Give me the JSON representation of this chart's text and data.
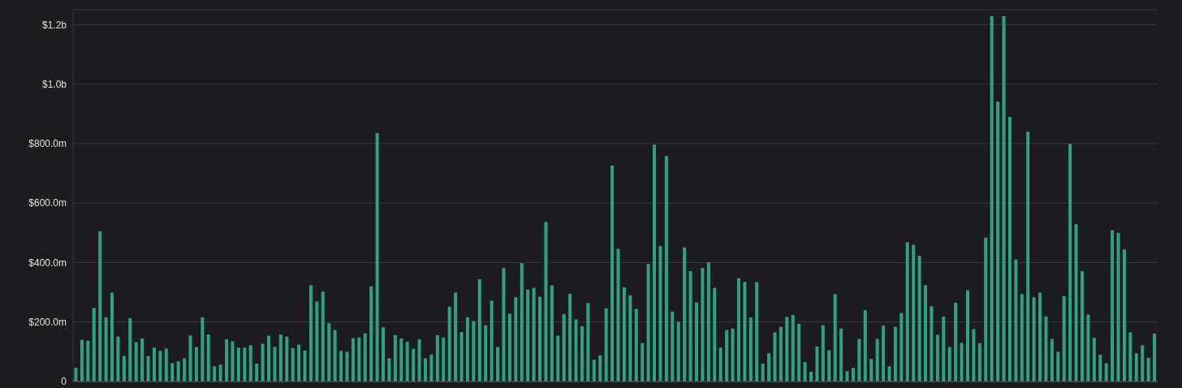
{
  "chart_data": {
    "type": "bar",
    "categories": [
      null,
      null,
      null,
      null,
      null,
      null,
      null,
      null,
      null,
      null,
      null,
      null,
      null,
      null,
      null,
      null,
      null,
      null,
      null,
      null,
      null,
      null,
      null,
      null,
      null,
      null,
      null,
      null,
      null,
      null,
      null,
      null,
      null,
      null,
      null,
      null,
      null,
      null,
      null,
      null,
      null,
      null,
      null,
      null,
      null,
      null,
      null,
      null,
      null,
      null,
      null,
      null,
      null,
      null,
      null,
      null,
      null,
      null,
      null,
      null,
      null,
      null,
      null,
      null,
      null,
      null,
      null,
      null,
      null,
      null,
      null,
      null,
      null,
      null,
      null,
      null,
      null,
      null,
      null,
      null,
      null,
      null,
      null,
      null,
      null,
      null,
      null,
      null,
      null,
      null,
      null,
      null,
      null,
      null,
      null,
      null,
      null,
      null,
      null,
      null,
      null,
      null,
      null,
      null,
      null,
      null,
      null,
      null,
      null,
      null,
      null,
      null,
      null,
      null,
      null,
      null,
      null,
      null,
      null,
      null,
      null,
      null,
      null,
      null,
      null,
      null,
      null,
      null,
      null,
      null,
      null,
      null,
      null,
      null,
      null,
      null,
      null,
      null,
      null,
      null,
      null,
      null,
      null,
      null,
      null,
      null,
      null,
      null,
      null,
      null,
      null,
      null,
      null,
      null,
      null,
      null,
      null,
      null,
      null,
      null,
      null,
      null,
      null,
      null,
      null,
      null,
      null,
      null,
      null,
      null,
      null,
      null,
      null,
      null,
      null,
      null,
      null,
      null,
      null,
      null
    ],
    "values": [
      46000000,
      140000000,
      137000000,
      247000000,
      505000000,
      216000000,
      299000000,
      151000000,
      86000000,
      213000000,
      132000000,
      145000000,
      86000000,
      114000000,
      103000000,
      111000000,
      62000000,
      68000000,
      78000000,
      155000000,
      116000000,
      216000000,
      158000000,
      51000000,
      56000000,
      142000000,
      135000000,
      114000000,
      114000000,
      122000000,
      60000000,
      127000000,
      154000000,
      116000000,
      158000000,
      151000000,
      112000000,
      124000000,
      104000000,
      324000000,
      269000000,
      302000000,
      196000000,
      173000000,
      103000000,
      100000000,
      146000000,
      148000000,
      162000000,
      320000000,
      835000000,
      183000000,
      78000000,
      156000000,
      145000000,
      133000000,
      110000000,
      142000000,
      78000000,
      91000000,
      156000000,
      148000000,
      251000000,
      299000000,
      166000000,
      216000000,
      203000000,
      344000000,
      189000000,
      272000000,
      116000000,
      382000000,
      228000000,
      283000000,
      398000000,
      309000000,
      315000000,
      285000000,
      536000000,
      323000000,
      154000000,
      227000000,
      295000000,
      209000000,
      186000000,
      264000000,
      73000000,
      88000000,
      246000000,
      726000000,
      446000000,
      317000000,
      290000000,
      244000000,
      129000000,
      395000000,
      796000000,
      455000000,
      758000000,
      235000000,
      201000000,
      451000000,
      371000000,
      266000000,
      382000000,
      401000000,
      315000000,
      114000000,
      173000000,
      178000000,
      347000000,
      335000000,
      215000000,
      334000000,
      60000000,
      95000000,
      165000000,
      184000000,
      217000000,
      224000000,
      194000000,
      65000000,
      33000000,
      118000000,
      189000000,
      105000000,
      294000000,
      178000000,
      35000000,
      46000000,
      143000000,
      240000000,
      76000000,
      143000000,
      188000000,
      51000000,
      184000000,
      230000000,
      468000000,
      460000000,
      423000000,
      324000000,
      253000000,
      157000000,
      218000000,
      116000000,
      265000000,
      130000000,
      307000000,
      176000000,
      129000000,
      484000000,
      1228000000,
      941000000,
      1228000000,
      890000000,
      410000000,
      294000000,
      840000000,
      283000000,
      299000000,
      219000000,
      143000000,
      100000000,
      287000000,
      799000000,
      529000000,
      371000000,
      225000000,
      147000000,
      90000000,
      61000000,
      508000000,
      500000000,
      444000000,
      165000000,
      95000000,
      122000000,
      80000000,
      161000000
    ],
    "color": "#2ea383",
    "ylim": [
      0,
      1250000000
    ],
    "yticks": [
      {
        "value": 0,
        "label": "0"
      },
      {
        "value": 200000000,
        "label": "$200.0m"
      },
      {
        "value": 400000000,
        "label": "$400.0m"
      },
      {
        "value": 600000000,
        "label": "$600.0m"
      },
      {
        "value": 800000000,
        "label": "$800.0m"
      },
      {
        "value": 1000000000,
        "label": "$1.0b"
      },
      {
        "value": 1200000000,
        "label": "$1.2b"
      }
    ],
    "grid": "y",
    "tick_labels": "y"
  }
}
